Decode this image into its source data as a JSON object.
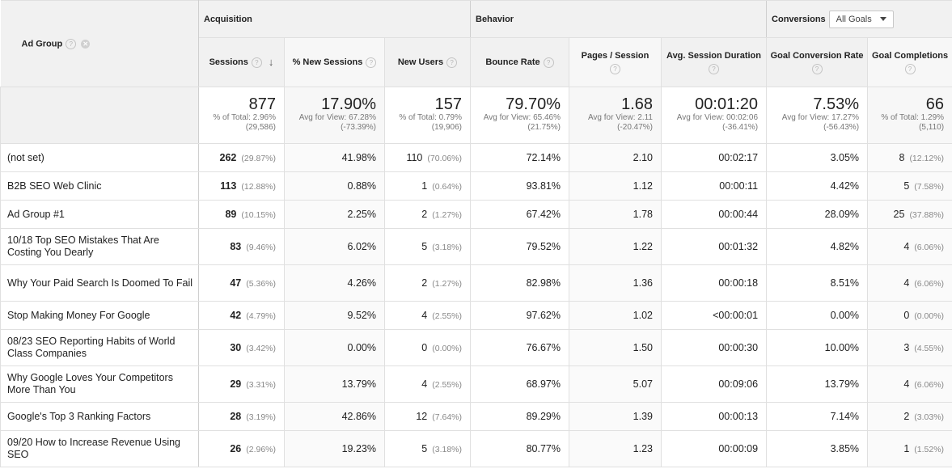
{
  "header": {
    "ad_group_label": "Ad Group",
    "groups": {
      "acquisition": "Acquisition",
      "behavior": "Behavior",
      "conversions": "Conversions"
    },
    "goals_select": "All Goals",
    "columns": [
      "Sessions",
      "% New Sessions",
      "New Users",
      "Bounce Rate",
      "Pages / Session",
      "Avg. Session Duration",
      "Goal Conversion Rate",
      "Goal Completions"
    ]
  },
  "totals": [
    {
      "value": "877",
      "line1": "% of Total: 2.96%",
      "line2": "(29,586)"
    },
    {
      "value": "17.90%",
      "line1": "Avg for View: 67.28%",
      "line2": "(-73.39%)"
    },
    {
      "value": "157",
      "line1": "% of Total: 0.79%",
      "line2": "(19,906)"
    },
    {
      "value": "79.70%",
      "line1": "Avg for View: 65.46%",
      "line2": "(21.75%)"
    },
    {
      "value": "1.68",
      "line1": "Avg for View: 2.11",
      "line2": "(-20.47%)"
    },
    {
      "value": "00:01:20",
      "line1": "Avg for View: 00:02:06",
      "line2": "(-36.41%)"
    },
    {
      "value": "7.53%",
      "line1": "Avg for View: 17.27%",
      "line2": "(-56.43%)"
    },
    {
      "value": "66",
      "line1": "% of Total: 1.29%",
      "line2": "(5,110)"
    }
  ],
  "rows": [
    {
      "name": "(not set)",
      "sessions": "262",
      "sessions_pct": "(29.87%)",
      "new_sessions": "41.98%",
      "new_users": "110",
      "new_users_pct": "(70.06%)",
      "bounce": "72.14%",
      "pages": "2.10",
      "duration": "00:02:17",
      "conv_rate": "3.05%",
      "completions": "8",
      "completions_pct": "(12.12%)"
    },
    {
      "name": "B2B SEO Web Clinic",
      "sessions": "113",
      "sessions_pct": "(12.88%)",
      "new_sessions": "0.88%",
      "new_users": "1",
      "new_users_pct": "(0.64%)",
      "bounce": "93.81%",
      "pages": "1.12",
      "duration": "00:00:11",
      "conv_rate": "4.42%",
      "completions": "5",
      "completions_pct": "(7.58%)"
    },
    {
      "name": "Ad Group #1",
      "sessions": "89",
      "sessions_pct": "(10.15%)",
      "new_sessions": "2.25%",
      "new_users": "2",
      "new_users_pct": "(1.27%)",
      "bounce": "67.42%",
      "pages": "1.78",
      "duration": "00:00:44",
      "conv_rate": "28.09%",
      "completions": "25",
      "completions_pct": "(37.88%)"
    },
    {
      "name": "10/18 Top SEO Mistakes That Are Costing You Dearly",
      "sessions": "83",
      "sessions_pct": "(9.46%)",
      "new_sessions": "6.02%",
      "new_users": "5",
      "new_users_pct": "(3.18%)",
      "bounce": "79.52%",
      "pages": "1.22",
      "duration": "00:01:32",
      "conv_rate": "4.82%",
      "completions": "4",
      "completions_pct": "(6.06%)"
    },
    {
      "name": "Why Your Paid Search Is Doomed To Fail",
      "sessions": "47",
      "sessions_pct": "(5.36%)",
      "new_sessions": "4.26%",
      "new_users": "2",
      "new_users_pct": "(1.27%)",
      "bounce": "82.98%",
      "pages": "1.36",
      "duration": "00:00:18",
      "conv_rate": "8.51%",
      "completions": "4",
      "completions_pct": "(6.06%)"
    },
    {
      "name": "Stop Making Money For Google",
      "sessions": "42",
      "sessions_pct": "(4.79%)",
      "new_sessions": "9.52%",
      "new_users": "4",
      "new_users_pct": "(2.55%)",
      "bounce": "97.62%",
      "pages": "1.02",
      "duration": "<00:00:01",
      "conv_rate": "0.00%",
      "completions": "0",
      "completions_pct": "(0.00%)"
    },
    {
      "name": "08/23 SEO Reporting Habits of World Class Companies",
      "sessions": "30",
      "sessions_pct": "(3.42%)",
      "new_sessions": "0.00%",
      "new_users": "0",
      "new_users_pct": "(0.00%)",
      "bounce": "76.67%",
      "pages": "1.50",
      "duration": "00:00:30",
      "conv_rate": "10.00%",
      "completions": "3",
      "completions_pct": "(4.55%)"
    },
    {
      "name": "Why Google Loves Your Competitors More Than You",
      "sessions": "29",
      "sessions_pct": "(3.31%)",
      "new_sessions": "13.79%",
      "new_users": "4",
      "new_users_pct": "(2.55%)",
      "bounce": "68.97%",
      "pages": "5.07",
      "duration": "00:09:06",
      "conv_rate": "13.79%",
      "completions": "4",
      "completions_pct": "(6.06%)"
    },
    {
      "name": "Google's Top 3 Ranking Factors",
      "sessions": "28",
      "sessions_pct": "(3.19%)",
      "new_sessions": "42.86%",
      "new_users": "12",
      "new_users_pct": "(7.64%)",
      "bounce": "89.29%",
      "pages": "1.39",
      "duration": "00:00:13",
      "conv_rate": "7.14%",
      "completions": "2",
      "completions_pct": "(3.03%)"
    },
    {
      "name": "09/20 How to Increase Revenue Using SEO",
      "sessions": "26",
      "sessions_pct": "(2.96%)",
      "new_sessions": "19.23%",
      "new_users": "5",
      "new_users_pct": "(3.18%)",
      "bounce": "80.77%",
      "pages": "1.23",
      "duration": "00:00:09",
      "conv_rate": "3.85%",
      "completions": "1",
      "completions_pct": "(1.52%)"
    }
  ]
}
